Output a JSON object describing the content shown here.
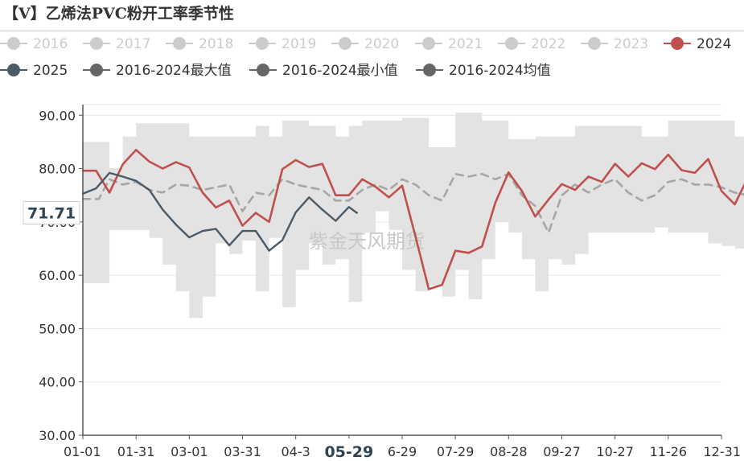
{
  "title": "【V】乙烯法PVC粉开工率季节性",
  "watermark": "紫金天风期货",
  "colors": {
    "band": "#e3e3e3",
    "s2024": "#c0504d",
    "s2025": "#4a5a66",
    "mean": "#a6a6a6",
    "legend_inactive": "#cccccc",
    "legend_dark": "#666666",
    "grid": "#e6e6e6",
    "axis": "#555555",
    "tooltip_text": "#2f4554"
  },
  "chart_data": {
    "type": "line",
    "title": "【V】乙烯法PVC粉开工率季节性",
    "x_categories": [
      "01-01",
      "01-31",
      "03-01",
      "03-31",
      "04-30",
      "05-29",
      "06-29",
      "07-29",
      "08-28",
      "09-27",
      "10-27",
      "11-26",
      "12-31"
    ],
    "x_tick_labels": [
      "01-01",
      "01-31",
      "03-01",
      "03-31",
      "04-3",
      "05-29",
      "6-29",
      "07-29",
      "08-28",
      "09-27",
      "10-27",
      "11-26",
      "12-31"
    ],
    "ylim": [
      30,
      92
    ],
    "yticks": [
      "30.00",
      "40.00",
      "50.00",
      "60.00",
      "70.00",
      "80.00",
      "90.00"
    ],
    "grid": true,
    "legend_position": "top",
    "legend": [
      {
        "name": "2016",
        "style": "dot",
        "active": false
      },
      {
        "name": "2017",
        "style": "dot",
        "active": false
      },
      {
        "name": "2018",
        "style": "dot",
        "active": false
      },
      {
        "name": "2019",
        "style": "dot",
        "active": false
      },
      {
        "name": "2020",
        "style": "dot",
        "active": false
      },
      {
        "name": "2021",
        "style": "dot",
        "active": false
      },
      {
        "name": "2022",
        "style": "dot",
        "active": false
      },
      {
        "name": "2023",
        "style": "dot",
        "active": false
      },
      {
        "name": "2024",
        "style": "dot",
        "active": true
      },
      {
        "name": "2025",
        "style": "dot",
        "active": true
      },
      {
        "name": "2016-2024最大值",
        "style": "dot",
        "active": true
      },
      {
        "name": "2016-2024最小值",
        "style": "dot",
        "active": true
      },
      {
        "name": "2016-2024均值",
        "style": "dot",
        "active": true
      }
    ],
    "highlight_x_label": "05-29",
    "highlight_y_label": "71.71",
    "series": [
      {
        "name": "2024",
        "values": [
          [
            0,
            79.6
          ],
          [
            0.25,
            79.6
          ],
          [
            0.5,
            75.5
          ],
          [
            0.75,
            80.8
          ],
          [
            1,
            83.5
          ],
          [
            1.25,
            81.3
          ],
          [
            1.5,
            80
          ],
          [
            1.75,
            81.2
          ],
          [
            2,
            80.2
          ],
          [
            2.25,
            75.5
          ],
          [
            2.5,
            72.7
          ],
          [
            2.75,
            74
          ],
          [
            3,
            69.3
          ],
          [
            3.25,
            71.7
          ],
          [
            3.5,
            70
          ],
          [
            3.75,
            79.9
          ],
          [
            4,
            81.6
          ],
          [
            4.25,
            80.3
          ],
          [
            4.5,
            80.9
          ],
          [
            4.75,
            75
          ],
          [
            5,
            75
          ],
          [
            5.25,
            78
          ],
          [
            5.5,
            76.6
          ],
          [
            5.75,
            74.6
          ],
          [
            6,
            76.8
          ],
          [
            6.25,
            67.3
          ],
          [
            6.5,
            57.4
          ],
          [
            6.75,
            58.2
          ],
          [
            7,
            64.6
          ],
          [
            7.25,
            64.2
          ],
          [
            7.5,
            65.4
          ],
          [
            7.75,
            73.6
          ],
          [
            8,
            79.3
          ],
          [
            8.25,
            75.8
          ],
          [
            8.5,
            71
          ],
          [
            8.75,
            74.2
          ],
          [
            9,
            77.1
          ],
          [
            9.25,
            76
          ],
          [
            9.5,
            78.5
          ],
          [
            9.75,
            77.5
          ],
          [
            10,
            80.9
          ],
          [
            10.25,
            78.5
          ],
          [
            10.5,
            81
          ],
          [
            10.75,
            79.9
          ],
          [
            11,
            82.6
          ],
          [
            11.25,
            79.7
          ],
          [
            11.5,
            79.2
          ],
          [
            11.75,
            81.8
          ],
          [
            12,
            75.8
          ],
          [
            12.25,
            73.3
          ],
          [
            12.5,
            78.4
          ]
        ]
      },
      {
        "name": "2025",
        "values": [
          [
            0,
            75.3
          ],
          [
            0.25,
            76.3
          ],
          [
            0.5,
            79.2
          ],
          [
            0.75,
            78.5
          ],
          [
            1,
            77.7
          ],
          [
            1.25,
            76
          ],
          [
            1.5,
            72.3
          ],
          [
            1.75,
            69.5
          ],
          [
            2,
            67.1
          ],
          [
            2.25,
            68.3
          ],
          [
            2.5,
            68.7
          ],
          [
            2.75,
            65.6
          ],
          [
            3,
            68.3
          ],
          [
            3.25,
            68.3
          ],
          [
            3.5,
            64.6
          ],
          [
            3.75,
            66.6
          ],
          [
            4,
            71.8
          ],
          [
            4.25,
            74.6
          ],
          [
            4.5,
            72.3
          ],
          [
            4.75,
            70.2
          ],
          [
            5,
            72.8
          ],
          [
            5.15,
            71.7
          ]
        ]
      },
      {
        "name": "2016-2024均值",
        "values": [
          [
            0,
            74.3
          ],
          [
            0.3,
            74.3
          ],
          [
            0.5,
            78
          ],
          [
            0.75,
            77
          ],
          [
            1,
            77.5
          ],
          [
            1.25,
            76
          ],
          [
            1.5,
            75.5
          ],
          [
            1.75,
            77
          ],
          [
            2,
            76.8
          ],
          [
            2.25,
            76
          ],
          [
            2.5,
            76.5
          ],
          [
            2.75,
            77
          ],
          [
            3,
            72
          ],
          [
            3.25,
            75.5
          ],
          [
            3.5,
            75
          ],
          [
            3.75,
            78
          ],
          [
            4,
            77
          ],
          [
            4.25,
            76.5
          ],
          [
            4.5,
            76
          ],
          [
            4.75,
            74
          ],
          [
            5,
            74
          ],
          [
            5.25,
            76
          ],
          [
            5.5,
            77
          ],
          [
            5.75,
            76
          ],
          [
            6,
            78
          ],
          [
            6.25,
            77
          ],
          [
            6.5,
            75
          ],
          [
            6.75,
            74
          ],
          [
            7,
            79
          ],
          [
            7.25,
            78.5
          ],
          [
            7.5,
            79
          ],
          [
            7.75,
            78
          ],
          [
            8,
            79
          ],
          [
            8.25,
            75
          ],
          [
            8.5,
            73
          ],
          [
            8.75,
            68
          ],
          [
            9,
            75
          ],
          [
            9.25,
            77
          ],
          [
            9.5,
            75.5
          ],
          [
            9.75,
            77
          ],
          [
            10,
            78
          ],
          [
            10.25,
            75.5
          ],
          [
            10.5,
            74
          ],
          [
            10.75,
            75
          ],
          [
            11,
            77.5
          ],
          [
            11.25,
            78
          ],
          [
            11.5,
            77
          ],
          [
            11.75,
            77
          ],
          [
            12,
            76.5
          ],
          [
            12.25,
            75.5
          ],
          [
            12.5,
            75
          ]
        ]
      }
    ],
    "band": {
      "name": "2016-2024最小值 ~ 2016-2024最大值",
      "x": [
        0,
        0.25,
        0.5,
        0.75,
        1,
        1.25,
        1.5,
        1.75,
        2,
        2.25,
        2.5,
        2.75,
        3,
        3.25,
        3.5,
        3.75,
        4,
        4.25,
        4.5,
        4.75,
        5,
        5.25,
        5.5,
        5.75,
        6,
        6.25,
        6.5,
        6.75,
        7,
        7.25,
        7.5,
        7.75,
        8,
        8.25,
        8.5,
        8.75,
        9,
        9.25,
        9.5,
        9.75,
        10,
        10.25,
        10.5,
        10.75,
        11,
        11.25,
        11.5,
        11.75,
        12,
        12.25,
        12.5
      ],
      "max": [
        85,
        85,
        80,
        86,
        88.5,
        88.5,
        88.5,
        88.5,
        86,
        86,
        86,
        86,
        86,
        88,
        86,
        89,
        89,
        88,
        88,
        86,
        88,
        89,
        89,
        89,
        89.5,
        89.5,
        84,
        84,
        90.5,
        90.5,
        89,
        89,
        85.5,
        85.5,
        86,
        86,
        86,
        88,
        88,
        88,
        88,
        88,
        86,
        86,
        89,
        89,
        89,
        89,
        89,
        86,
        83
      ],
      "min": [
        58.5,
        58.5,
        68.5,
        68.5,
        68.5,
        67,
        62,
        57,
        52,
        56,
        66,
        64,
        66.5,
        57,
        67,
        54,
        61,
        66,
        62,
        63,
        55,
        68,
        72,
        68.5,
        61,
        57,
        58,
        56,
        61,
        55.5,
        63,
        70,
        68,
        63,
        57,
        63,
        62,
        64,
        68,
        68,
        68,
        68,
        68,
        69,
        68,
        68,
        68,
        66,
        65.5,
        65,
        62
      ]
    }
  }
}
